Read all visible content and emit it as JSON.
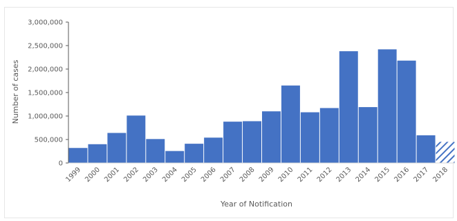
{
  "chart_data": {
    "type": "bar",
    "title": "",
    "xlabel": "Year of Notification",
    "ylabel": "Number of cases",
    "ylim": [
      0,
      3000000
    ],
    "yticks": [
      0,
      500000,
      1000000,
      1500000,
      2000000,
      2500000,
      3000000
    ],
    "ytick_labels": [
      "0",
      "500,000",
      "1,000,000",
      "1,500,000",
      "2,000,000",
      "2,500,000",
      "3,000,000"
    ],
    "categories": [
      "1999",
      "2000",
      "2001",
      "2002",
      "2003",
      "2004",
      "2005",
      "2006",
      "2007",
      "2008",
      "2009",
      "2010",
      "2011",
      "2012",
      "2013",
      "2014",
      "2015",
      "2016",
      "2017",
      "2018"
    ],
    "values": [
      320000,
      400000,
      640000,
      1010000,
      510000,
      255000,
      410000,
      540000,
      880000,
      890000,
      1100000,
      1650000,
      1080000,
      1170000,
      2380000,
      1190000,
      2420000,
      2180000,
      590000,
      450000
    ],
    "hatched_categories": [
      "2018"
    ],
    "colors": {
      "bar": "#4472c4",
      "axis": "#595959"
    },
    "grid": false,
    "legend": "none"
  }
}
